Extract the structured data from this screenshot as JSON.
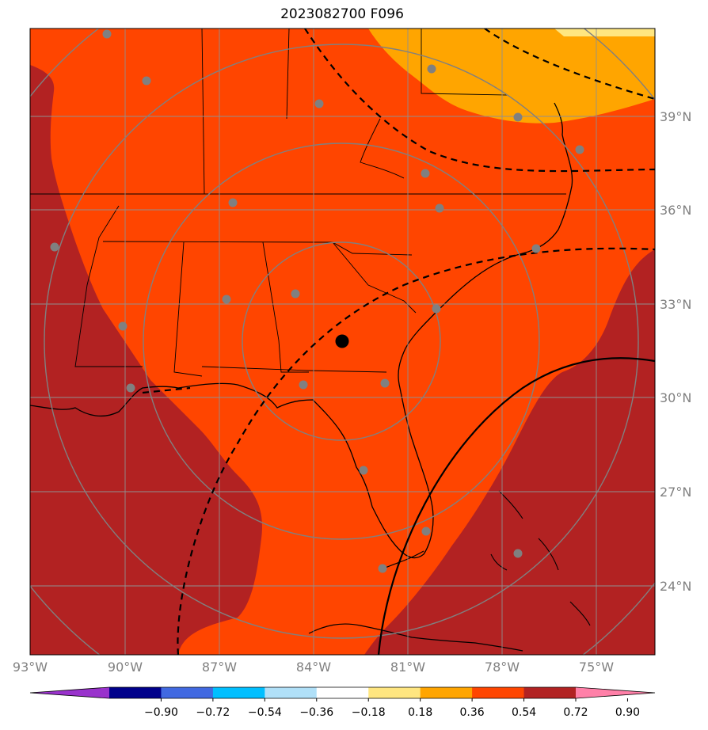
{
  "title": "2023082700 F096",
  "lon_labels": [
    "93°W",
    "90°W",
    "87°W",
    "84°W",
    "81°W",
    "78°W",
    "75°W"
  ],
  "lat_labels": [
    "39°N",
    "36°N",
    "33°N",
    "30°N",
    "27°N",
    "24°N"
  ],
  "colorbar": {
    "ticks": [
      "−0.90",
      "−0.72",
      "−0.54",
      "−0.36",
      "−0.18",
      "0.18",
      "0.36",
      "0.54",
      "0.72",
      "0.90"
    ],
    "colors": [
      "#9932cc",
      "#00008b",
      "#4169e1",
      "#00bfff",
      "#b0e0f8",
      "#ffffff",
      "#ffe680",
      "#ffa500",
      "#ff4500",
      "#b22222",
      "#ff80a8"
    ]
  },
  "fill_colors": {
    "dark_red": "#b22222",
    "orange_red": "#ff4500",
    "orange": "#ffa500",
    "light_yellow": "#ffe680"
  }
}
